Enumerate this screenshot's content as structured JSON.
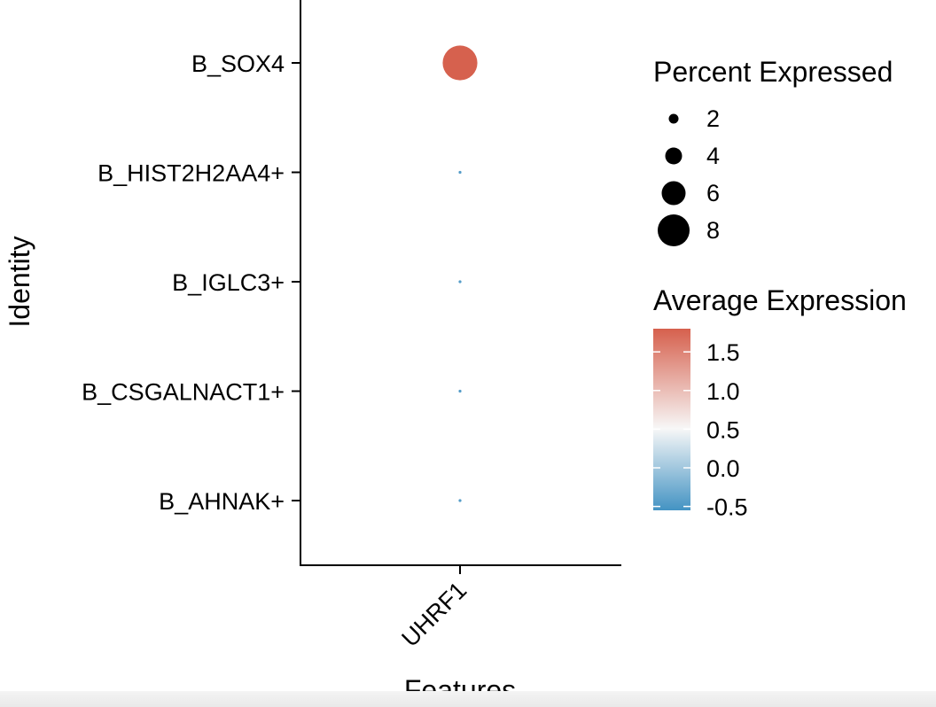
{
  "chart_data": {
    "type": "dot",
    "xlabel": "Features",
    "ylabel": "Identity",
    "features": [
      "UHRF1"
    ],
    "identities": [
      "B_SOX4",
      "B_HIST2H2AA4+",
      "B_IGLC3+",
      "B_CSGALNACT1+",
      "B_AHNAK+"
    ],
    "points": [
      {
        "feature": "UHRF1",
        "identity": "B_SOX4",
        "percent_expressed": 8.0,
        "avg_expression": 1.79
      },
      {
        "feature": "UHRF1",
        "identity": "B_HIST2H2AA4+",
        "percent_expressed": 0.1,
        "avg_expression": -0.45
      },
      {
        "feature": "UHRF1",
        "identity": "B_IGLC3+",
        "percent_expressed": 0.1,
        "avg_expression": -0.45
      },
      {
        "feature": "UHRF1",
        "identity": "B_CSGALNACT1+",
        "percent_expressed": 0.3,
        "avg_expression": -0.45
      },
      {
        "feature": "UHRF1",
        "identity": "B_AHNAK+",
        "percent_expressed": 0.1,
        "avg_expression": -0.45
      }
    ],
    "size_legend": {
      "title": "Percent Expressed",
      "breaks": [
        2,
        4,
        6,
        8
      ],
      "labels": [
        "2",
        "4",
        "6",
        "8"
      ]
    },
    "color_legend": {
      "title": "Average Expression",
      "breaks": [
        1.5,
        1.0,
        0.5,
        0.0,
        -0.5
      ],
      "labels": [
        "1.5",
        "1.0",
        "0.5",
        "0.0",
        "-0.5"
      ],
      "limits": [
        -0.55,
        1.8
      ],
      "low_color": "#4393c3",
      "mid_color": "#f7f7f7",
      "high_color": "#d6604d"
    }
  }
}
